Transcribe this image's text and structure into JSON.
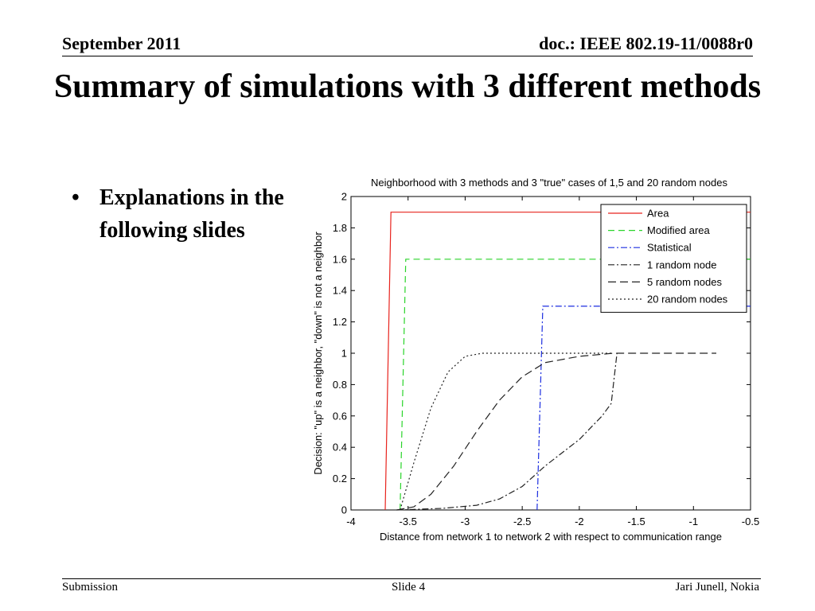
{
  "header": {
    "date": "September 2011",
    "doc": "doc.: IEEE 802.19-11/0088r0"
  },
  "title": "Summary of simulations with 3 different methods",
  "bullets": [
    {
      "bullet_glyph": "•",
      "text": "Explanations in the following slides"
    }
  ],
  "footer": {
    "left": "Submission",
    "center": "Slide 4",
    "right": "Jari Junell, Nokia"
  },
  "chart_data": {
    "type": "line",
    "title": "Neighborhood with 3 methods and 3 \"true\" cases of 1,5 and 20 random nodes",
    "xlabel": "Distance from network 1 to network 2 with respect to communication range",
    "ylabel": "Decision: \"up\" is a neighbor, \"down\" is not a neighbor",
    "xlim": [
      -4,
      -0.5
    ],
    "ylim": [
      0,
      2
    ],
    "xticks": [
      "-4",
      "-3.5",
      "-3",
      "-2.5",
      "-2",
      "-1.5",
      "-1",
      "-0.5"
    ],
    "yticks": [
      "0",
      "0.2",
      "0.4",
      "0.6",
      "0.8",
      "1",
      "1.2",
      "1.4",
      "1.6",
      "1.8",
      "2"
    ],
    "legend_position": "top-right",
    "grid": false,
    "series": [
      {
        "name": "Area",
        "color": "#e8231d",
        "dash": "",
        "points": [
          [
            -3.7,
            0
          ],
          [
            -3.65,
            1.9
          ],
          [
            -0.5,
            1.9
          ]
        ]
      },
      {
        "name": "Modified area",
        "color": "#2ad42a",
        "dash": "8,5",
        "points": [
          [
            -3.57,
            0
          ],
          [
            -3.52,
            1.6
          ],
          [
            -0.5,
            1.6
          ]
        ]
      },
      {
        "name": "Statistical",
        "color": "#1c2ee0",
        "dash": "8,3,2,3",
        "points": [
          [
            -2.37,
            0
          ],
          [
            -2.32,
            1.3
          ],
          [
            -0.5,
            1.3
          ]
        ]
      },
      {
        "name": "1 random node",
        "color": "#222222",
        "dash": "8,3,2,3",
        "points": [
          [
            -3.6,
            0
          ],
          [
            -3.2,
            0.01
          ],
          [
            -2.9,
            0.03
          ],
          [
            -2.7,
            0.07
          ],
          [
            -2.5,
            0.15
          ],
          [
            -2.3,
            0.28
          ],
          [
            -2.0,
            0.45
          ],
          [
            -1.8,
            0.6
          ],
          [
            -1.72,
            0.68
          ],
          [
            -1.67,
            1.0
          ]
        ]
      },
      {
        "name": "5 random nodes",
        "color": "#222222",
        "dash": "10,5",
        "points": [
          [
            -3.6,
            0
          ],
          [
            -3.45,
            0.02
          ],
          [
            -3.3,
            0.1
          ],
          [
            -3.1,
            0.28
          ],
          [
            -2.9,
            0.5
          ],
          [
            -2.7,
            0.7
          ],
          [
            -2.5,
            0.85
          ],
          [
            -2.3,
            0.94
          ],
          [
            -2.0,
            0.98
          ],
          [
            -1.7,
            1.0
          ],
          [
            -0.8,
            1.0
          ]
        ]
      },
      {
        "name": "20 random nodes",
        "color": "#222222",
        "dash": "2,3",
        "points": [
          [
            -3.57,
            0
          ],
          [
            -3.45,
            0.3
          ],
          [
            -3.3,
            0.65
          ],
          [
            -3.15,
            0.88
          ],
          [
            -3.0,
            0.98
          ],
          [
            -2.85,
            1.0
          ],
          [
            -1.7,
            1.0
          ]
        ]
      }
    ]
  }
}
